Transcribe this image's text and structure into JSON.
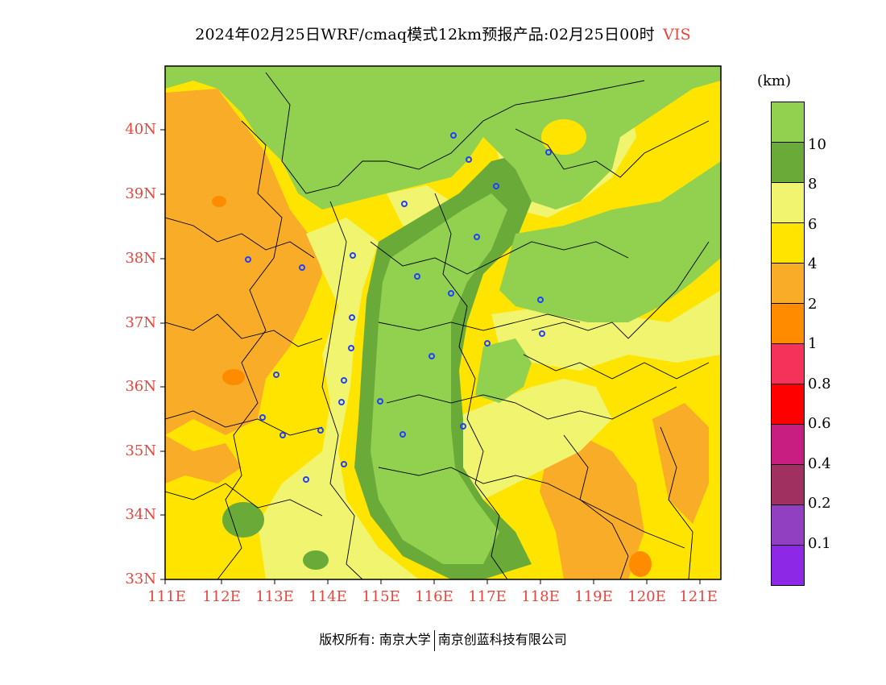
{
  "title": "2024年02月25日WRF/cmaq模式12km预报产品:02月25日00时",
  "variable": "VIS",
  "unit": "(km)",
  "lat_labels": [
    "40N",
    "39N",
    "38N",
    "37N",
    "36N",
    "35N",
    "34N",
    "33N"
  ],
  "lon_labels": [
    "111E",
    "112E",
    "113E",
    "114E",
    "115E",
    "116E",
    "117E",
    "118E",
    "119E",
    "120E",
    "121E"
  ],
  "legend": {
    "labels": [
      "10",
      "8",
      "6",
      "4",
      "2",
      "1",
      "0.8",
      "0.6",
      "0.4",
      "0.2",
      "0.1"
    ],
    "colors": [
      "#92d050",
      "#6aaa38",
      "#f0f46e",
      "#ffe400",
      "#f8ac28",
      "#ff8c00",
      "#f5325a",
      "#ff0000",
      "#c81e82",
      "#a03060",
      "#9040c0",
      "#8c28e6"
    ]
  },
  "copyright": {
    "part1": "版权所有: 南京大学",
    "part2": "南京创蓝科技有限公司"
  },
  "colors": {
    "accent": "#e8453c",
    "city_marker": "#2040ff"
  }
}
